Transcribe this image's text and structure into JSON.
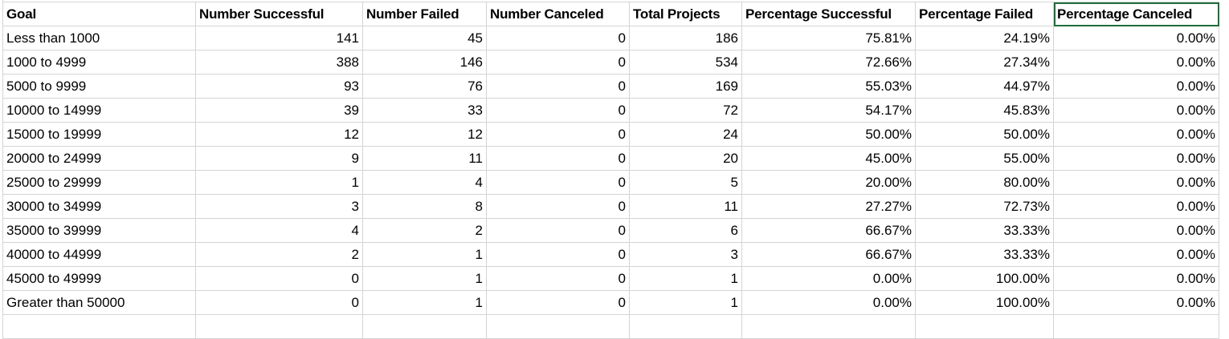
{
  "headers": [
    "Goal",
    "Number Successful",
    "Number Failed",
    "Number Canceled",
    "Total Projects",
    "Percentage Successful",
    "Percentage Failed",
    "Percentage Canceled"
  ],
  "rows": [
    [
      "Less than 1000",
      "141",
      "45",
      "0",
      "186",
      "75.81%",
      "24.19%",
      "0.00%"
    ],
    [
      "1000 to 4999",
      "388",
      "146",
      "0",
      "534",
      "72.66%",
      "27.34%",
      "0.00%"
    ],
    [
      "5000 to 9999",
      "93",
      "76",
      "0",
      "169",
      "55.03%",
      "44.97%",
      "0.00%"
    ],
    [
      "10000 to 14999",
      "39",
      "33",
      "0",
      "72",
      "54.17%",
      "45.83%",
      "0.00%"
    ],
    [
      "15000 to 19999",
      "12",
      "12",
      "0",
      "24",
      "50.00%",
      "50.00%",
      "0.00%"
    ],
    [
      "20000 to 24999",
      "9",
      "11",
      "0",
      "20",
      "45.00%",
      "55.00%",
      "0.00%"
    ],
    [
      "25000 to 29999",
      "1",
      "4",
      "0",
      "5",
      "20.00%",
      "80.00%",
      "0.00%"
    ],
    [
      "30000 to 34999",
      "3",
      "8",
      "0",
      "11",
      "27.27%",
      "72.73%",
      "0.00%"
    ],
    [
      "35000 to 39999",
      "4",
      "2",
      "0",
      "6",
      "66.67%",
      "33.33%",
      "0.00%"
    ],
    [
      "40000 to 44999",
      "2",
      "1",
      "0",
      "3",
      "66.67%",
      "33.33%",
      "0.00%"
    ],
    [
      "45000 to 49999",
      "0",
      "1",
      "0",
      "1",
      "0.00%",
      "100.00%",
      "0.00%"
    ],
    [
      "Greater than 50000",
      "0",
      "1",
      "0",
      "1",
      "0.00%",
      "100.00%",
      "0.00%"
    ]
  ],
  "colors": {
    "selection": "#1e6e3a",
    "gridline": "#d4d4d4"
  }
}
